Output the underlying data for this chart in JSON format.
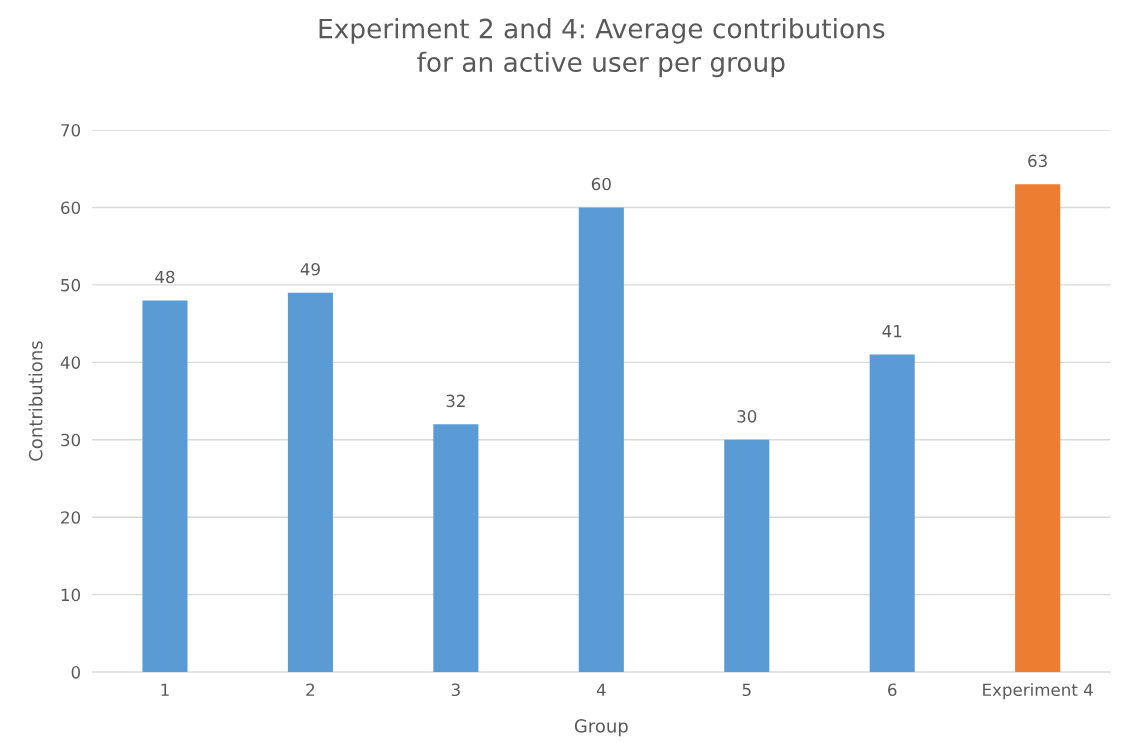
{
  "chart_data": {
    "type": "bar",
    "title": "Experiment 2 and 4: Average contributions\nfor an active user per group",
    "xlabel": "Group",
    "ylabel": "Contributions",
    "categories": [
      "1",
      "2",
      "3",
      "4",
      "5",
      "6",
      "Experiment 4"
    ],
    "values": [
      48,
      49,
      32,
      60,
      30,
      41,
      63
    ],
    "colors": [
      "#5b9bd5",
      "#5b9bd5",
      "#5b9bd5",
      "#5b9bd5",
      "#5b9bd5",
      "#5b9bd5",
      "#ed7d31"
    ],
    "ylim": [
      0,
      70
    ],
    "yticks": [
      0,
      10,
      20,
      30,
      40,
      50,
      60,
      70
    ],
    "grid": "y",
    "legend": false,
    "data_labels": true
  }
}
